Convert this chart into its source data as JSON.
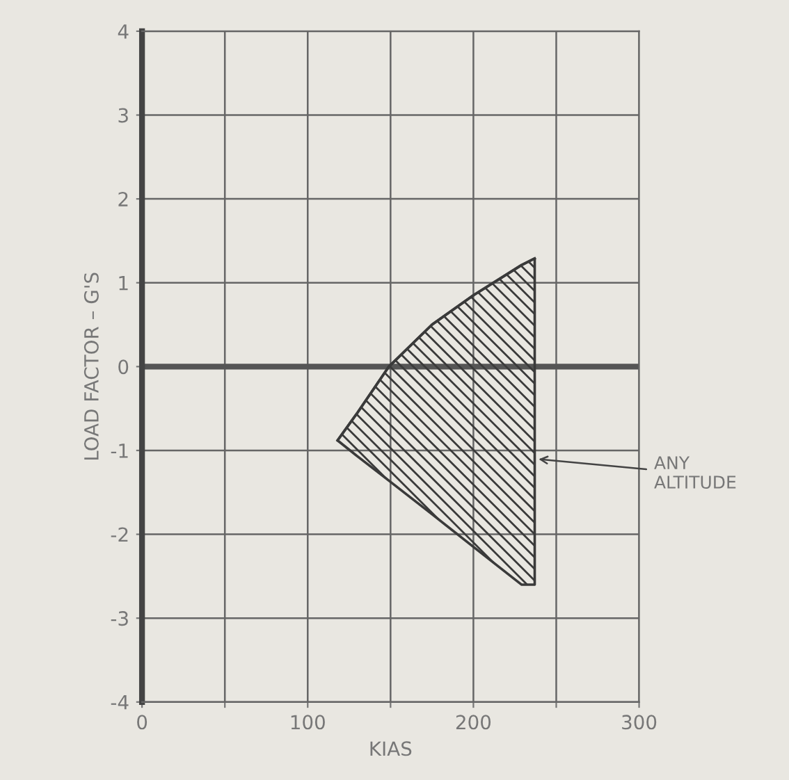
{
  "chart_data": {
    "type": "line",
    "xlabel": "KIAS",
    "ylabel": "LOAD FACTOR – G'S",
    "series": [
      {
        "color": "#3a3a3a",
        "x": [
          118,
          130,
          149,
          175,
          200,
          229,
          237
        ],
        "values": [
          -0.88,
          -0.55,
          0,
          0.5,
          0.85,
          1.21,
          1.29
        ],
        "upper": [
          -0.88,
          -0.55,
          0,
          0.5,
          0.85,
          1.21,
          1.29
        ],
        "lower": [
          -0.88,
          -1.07,
          -1.36,
          -1.76,
          -2.15,
          -2.6,
          -2.6
        ]
      }
    ],
    "xlim": [
      0,
      300
    ],
    "xticks": [
      0,
      {
        "value": 50,
        "label": null
      },
      100,
      {
        "value": 150,
        "label": null
      },
      200,
      {
        "value": 250,
        "label": null
      },
      300
    ],
    "ylim": [
      -4,
      4
    ],
    "yticks": [
      -4,
      -3,
      -2,
      -1,
      0,
      1,
      2,
      3,
      4
    ],
    "grid": true,
    "ref_lines": [
      {
        "axis": "y",
        "value": 0,
        "color": "#555555"
      }
    ],
    "annotations": [
      {
        "text": "ANY\nALTITUDE",
        "x": 237,
        "y": -1.1
      }
    ]
  }
}
